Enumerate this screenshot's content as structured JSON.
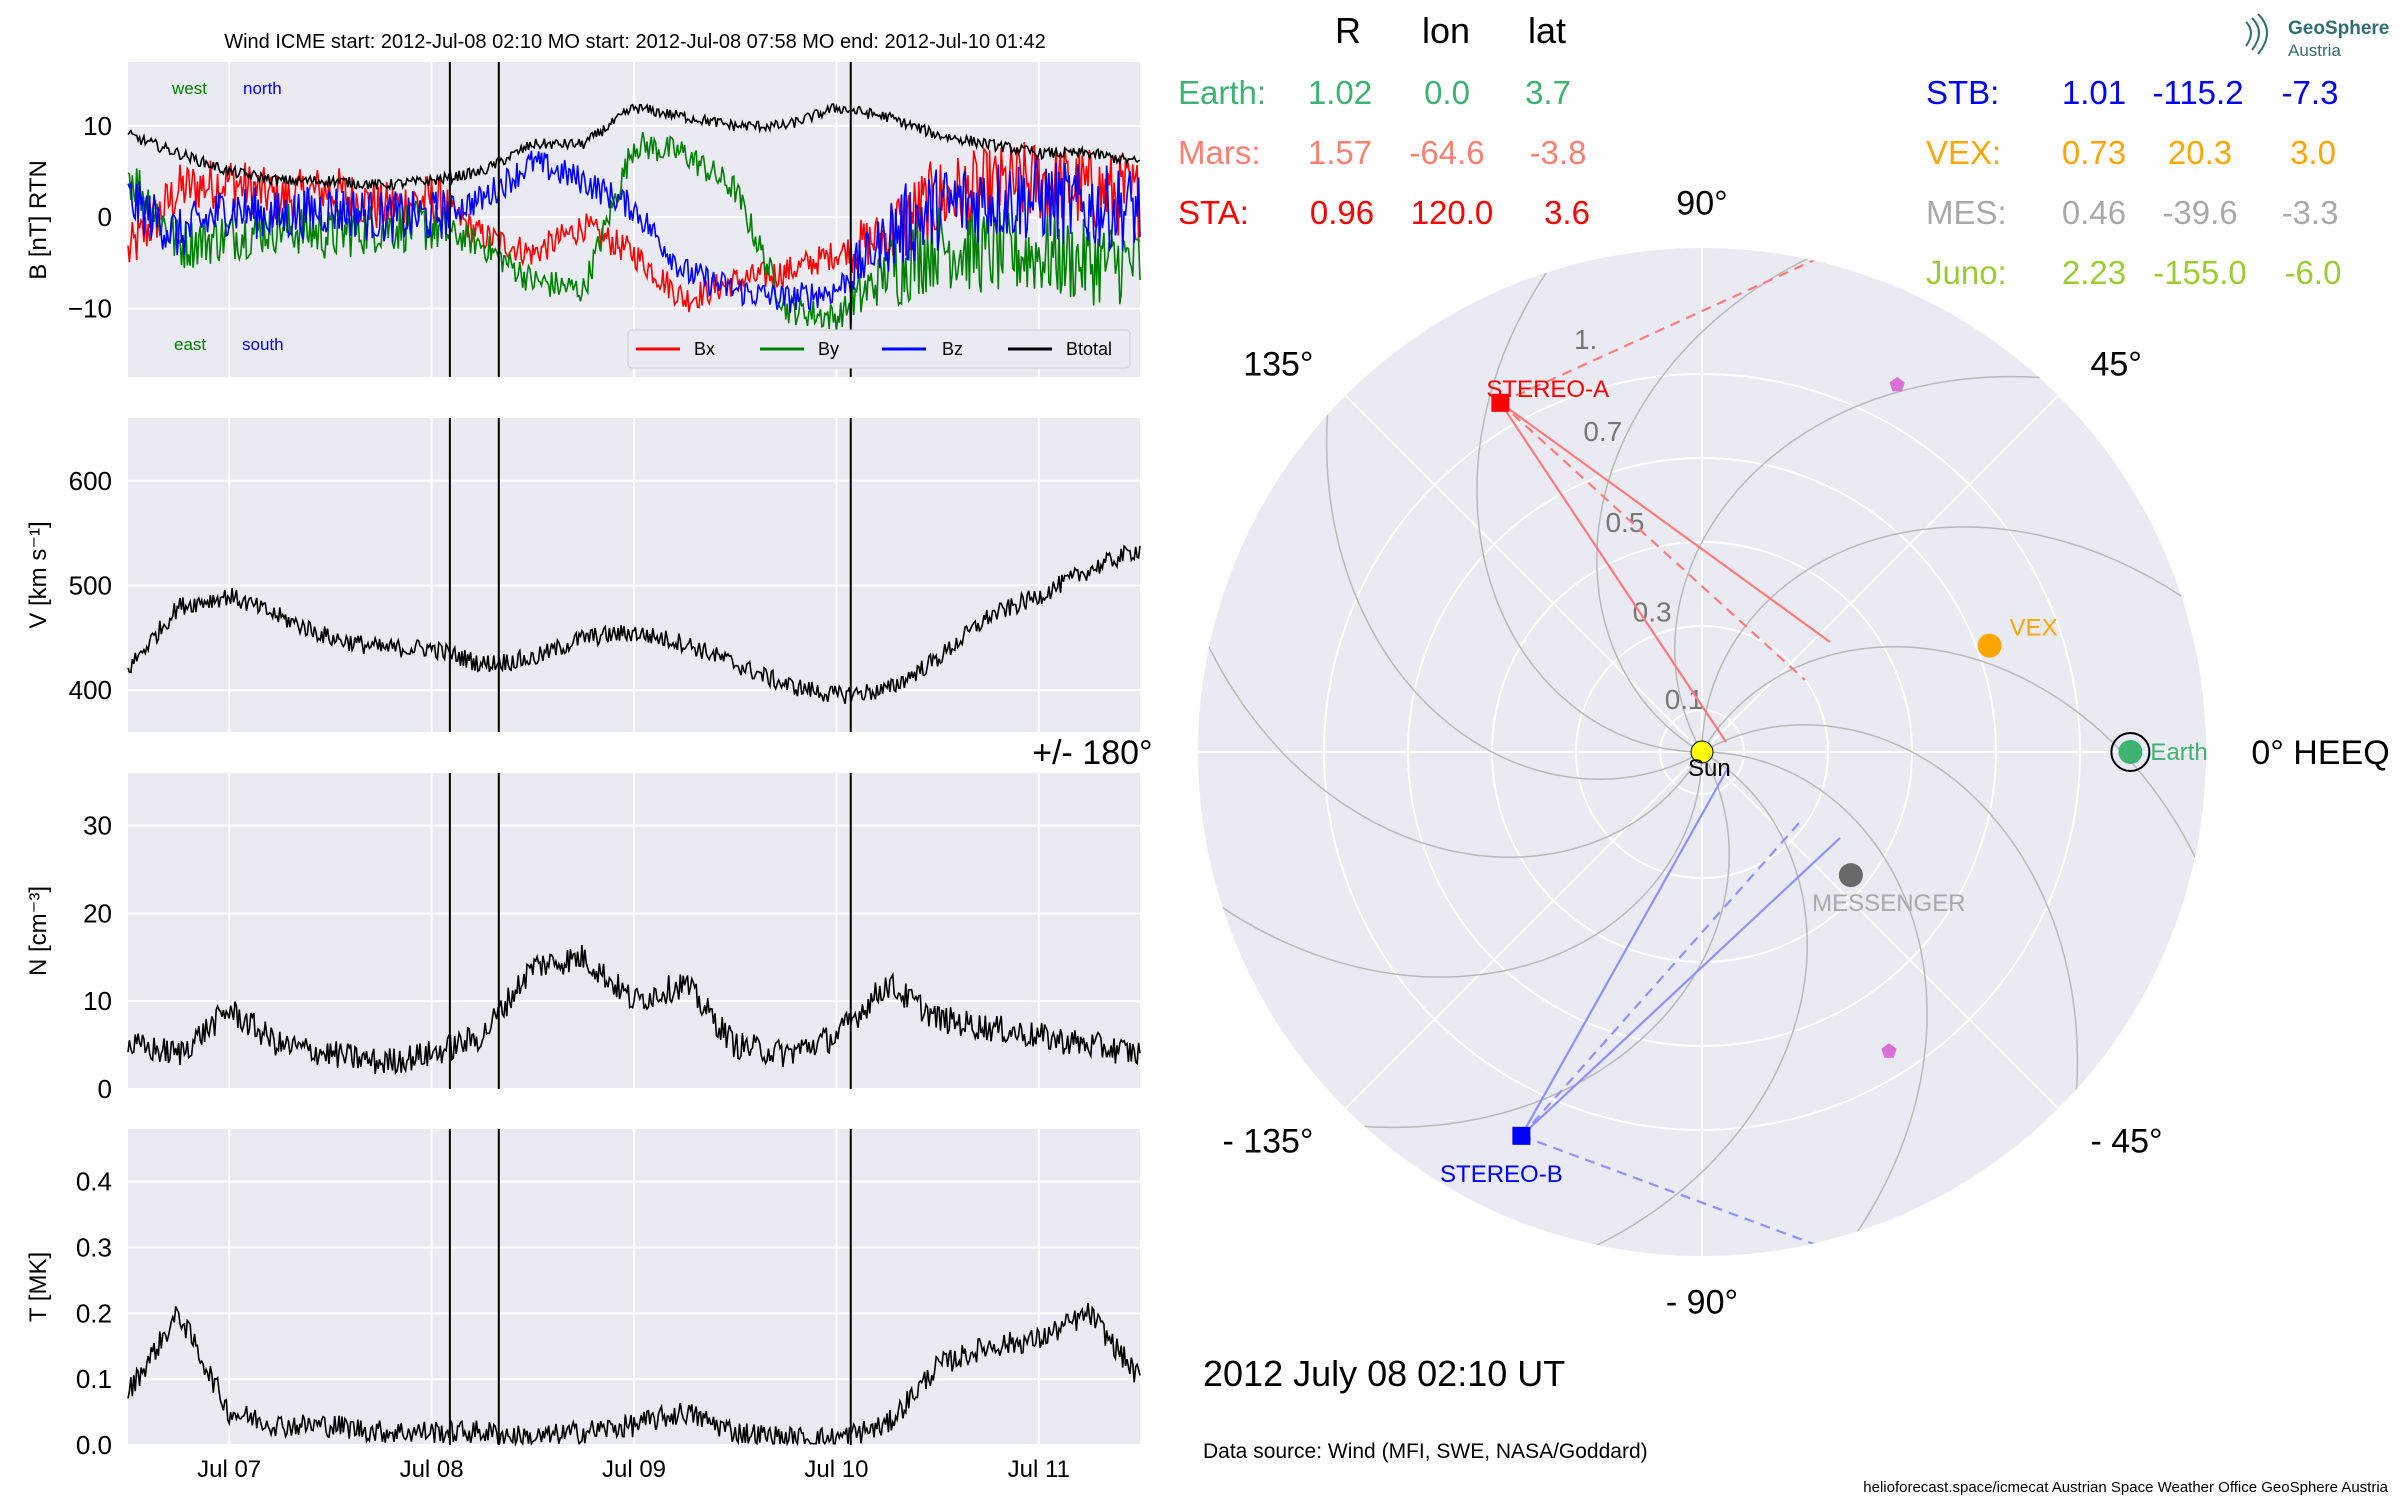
{
  "colors": {
    "panel_bg": "#eaeaf2",
    "bx": "#ff0000",
    "by": "#008000",
    "bz": "#0000ff",
    "btotal": "#000000",
    "earth": "#3cb371",
    "mars": "#fa8072",
    "sta": "#ff0000",
    "stb": "#0000ff",
    "vex": "#ffa500",
    "mes": "#a9a9a9",
    "juno": "#9acd32",
    "messenger_dot": "#696969",
    "sun": "#ffff00",
    "pentagon": "#da70d6"
  },
  "chart_data": [
    {
      "type": "line",
      "panel": "B",
      "title": "Wind    ICME start: 2012-Jul-08 02:10   MO start: 2012-Jul-08 07:58   MO end: 2012-Jul-10 01:42",
      "ylabel": "B [nT] RTN",
      "ylim": [
        -17.5,
        17
      ],
      "yticks": [
        -10,
        0,
        10
      ],
      "xlim": [
        "2012-07-06 12:00",
        "2012-07-11 12:00"
      ],
      "xticks": [
        "Jul 07",
        "Jul 08",
        "Jul 09",
        "Jul 10",
        "Jul 11"
      ],
      "event_lines": [
        "2012-07-08 02:10",
        "2012-07-08 07:58",
        "2012-07-10 01:42"
      ],
      "corner_labels": {
        "west": "west",
        "north": "north",
        "east": "east",
        "south": "south"
      },
      "legend": [
        "Bx",
        "By",
        "Bz",
        "Btotal"
      ],
      "legend_position": "lower-right",
      "series": [
        {
          "name": "Bx",
          "x_hours": [
            0,
            6,
            12,
            18,
            24,
            30,
            36,
            42,
            48,
            54,
            60,
            66,
            72,
            78,
            84,
            90,
            96,
            102,
            108,
            114,
            120
          ],
          "values": [
            -4,
            3,
            4,
            2,
            3,
            1,
            2,
            -2,
            -4,
            -1,
            -4,
            -9,
            -7,
            -6,
            -4,
            -2,
            2,
            3,
            4,
            3,
            2
          ]
        },
        {
          "name": "By",
          "x_hours": [
            0,
            6,
            12,
            18,
            24,
            30,
            36,
            42,
            48,
            54,
            60,
            66,
            72,
            78,
            84,
            90,
            96,
            102,
            108,
            114,
            120
          ],
          "values": [
            5,
            -3,
            -2,
            -1,
            -2,
            -1,
            -1,
            -3,
            -7,
            -8,
            8,
            7,
            3,
            -10,
            -11,
            -6,
            -3,
            -4,
            -4,
            -5,
            -5
          ]
        },
        {
          "name": "Bz",
          "x_hours": [
            0,
            6,
            12,
            18,
            24,
            30,
            36,
            42,
            48,
            54,
            60,
            66,
            72,
            78,
            84,
            90,
            96,
            102,
            108,
            114,
            120
          ],
          "values": [
            2,
            -2,
            1,
            0,
            1,
            0,
            0,
            2,
            6,
            4,
            1,
            -6,
            -8,
            -9,
            -8,
            -2,
            1,
            2,
            2,
            1,
            1
          ]
        },
        {
          "name": "Btotal",
          "x_hours": [
            0,
            6,
            12,
            18,
            24,
            30,
            36,
            42,
            48,
            54,
            60,
            66,
            72,
            78,
            84,
            90,
            96,
            102,
            108,
            114,
            120
          ],
          "values": [
            9,
            7,
            5,
            4,
            4,
            3.5,
            4,
            5,
            8,
            8,
            12,
            11,
            10,
            10,
            12,
            11,
            9,
            8,
            7,
            7,
            6
          ]
        }
      ]
    },
    {
      "type": "line",
      "panel": "V",
      "ylabel": "V [km s⁻¹]",
      "ylim": [
        360,
        660
      ],
      "yticks": [
        400,
        500,
        600
      ],
      "series": [
        {
          "name": "V",
          "x_hours": [
            0,
            6,
            12,
            18,
            24,
            30,
            36,
            42,
            48,
            54,
            60,
            66,
            72,
            78,
            84,
            90,
            96,
            102,
            108,
            114,
            120
          ],
          "values": [
            420,
            480,
            490,
            470,
            450,
            440,
            440,
            425,
            430,
            450,
            455,
            445,
            425,
            405,
            395,
            400,
            430,
            470,
            490,
            515,
            535
          ]
        }
      ]
    },
    {
      "type": "line",
      "panel": "N",
      "ylabel": "N [cm⁻³]",
      "ylim": [
        0,
        36
      ],
      "yticks": [
        0,
        10,
        20,
        30
      ],
      "series": [
        {
          "name": "N",
          "x_hours": [
            0,
            6,
            12,
            18,
            24,
            30,
            36,
            42,
            48,
            54,
            60,
            66,
            72,
            78,
            84,
            90,
            96,
            102,
            108,
            114,
            120
          ],
          "values": [
            5,
            4,
            9,
            5,
            4,
            3,
            4,
            6,
            14,
            15,
            10,
            12,
            5,
            4,
            6,
            12,
            8,
            7,
            6,
            5,
            4
          ]
        }
      ]
    },
    {
      "type": "line",
      "panel": "T",
      "ylabel": "T [MK]",
      "ylim": [
        0,
        0.48
      ],
      "yticks": [
        0.0,
        0.1,
        0.2,
        0.3,
        0.4
      ],
      "series": [
        {
          "name": "T",
          "x_hours": [
            0,
            6,
            12,
            18,
            24,
            30,
            36,
            42,
            48,
            54,
            60,
            66,
            72,
            78,
            84,
            90,
            96,
            102,
            108,
            114,
            120
          ],
          "values": [
            0.08,
            0.2,
            0.05,
            0.03,
            0.03,
            0.02,
            0.02,
            0.02,
            0.01,
            0.02,
            0.03,
            0.05,
            0.02,
            0.01,
            0.01,
            0.03,
            0.12,
            0.15,
            0.16,
            0.2,
            0.1
          ]
        }
      ]
    },
    {
      "type": "scatter",
      "panel": "polar",
      "projection": "polar",
      "reference": "0° HEEQ",
      "rlim": [
        0,
        1.2
      ],
      "rticks": [
        "0.1",
        "0.3",
        "0.5",
        "0.7",
        "1."
      ],
      "angle_labels": [
        "0° HEEQ",
        "45°",
        "90°",
        "135°",
        "+/- 180°",
        "- 135°",
        "- 90°",
        "- 45°"
      ],
      "objects": [
        {
          "name": "Sun",
          "r": 0.0,
          "lon": 0.0,
          "marker": "circle"
        },
        {
          "name": "Earth",
          "r": 1.02,
          "lon": 0.0,
          "marker": "circle"
        },
        {
          "name": "VEX",
          "r": 0.73,
          "lon": 20.3,
          "marker": "circle"
        },
        {
          "name": "MESSENGER",
          "r": 0.46,
          "lon": -39.6,
          "marker": "circle"
        },
        {
          "name": "STEREO-A",
          "r": 0.96,
          "lon": 120.0,
          "marker": "square"
        },
        {
          "name": "STEREO-B",
          "r": 1.01,
          "lon": -115.2,
          "marker": "square"
        },
        {
          "name": "",
          "r": 0.99,
          "lon": 62,
          "marker": "pentagon"
        },
        {
          "name": "",
          "r": 0.84,
          "lon": -58,
          "marker": "pentagon"
        }
      ]
    }
  ],
  "position_table": {
    "headers": [
      "R",
      "lon",
      "lat"
    ],
    "rows_left": [
      {
        "label": "Earth:",
        "r": "1.02",
        "lon": "0.0",
        "lat": "3.7"
      },
      {
        "label": "Mars:",
        "r": "1.57",
        "lon": "-64.6",
        "lat": "-3.8"
      },
      {
        "label": "STA:",
        "r": "0.96",
        "lon": "120.0",
        "lat": "3.6"
      }
    ],
    "rows_right": [
      {
        "label": "STB:",
        "r": "1.01",
        "lon": "-115.2",
        "lat": "-7.3"
      },
      {
        "label": "VEX:",
        "r": "0.73",
        "lon": "20.3",
        "lat": "3.0"
      },
      {
        "label": "MES:",
        "r": "0.46",
        "lon": "-39.6",
        "lat": "-3.3"
      },
      {
        "label": "Juno:",
        "r": "2.23",
        "lon": "-155.0",
        "lat": "-6.0"
      }
    ]
  },
  "datetime": "2012 July 08  02:10 UT",
  "data_source": "Data source: Wind (MFI, SWE, NASA/Goddard)",
  "footer": "helioforecast.space/icmecat   Austrian Space Weather Office   GeoSphere Austria",
  "logo": {
    "line1": "GeoSphere",
    "line2": "Austria"
  }
}
